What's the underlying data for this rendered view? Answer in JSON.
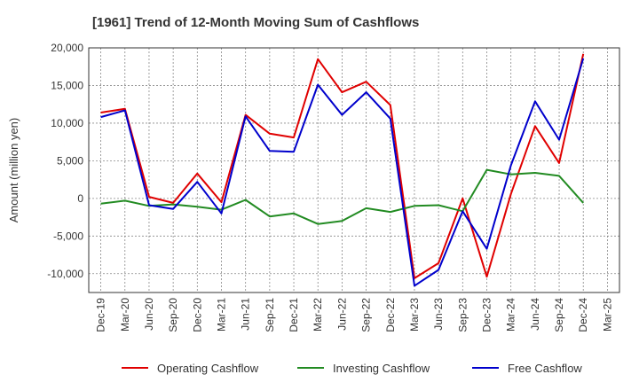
{
  "chart_data": {
    "type": "line",
    "title": "[1961]  Trend of 12-Month Moving Sum of Cashflows",
    "ylabel": "Amount (million yen)",
    "xlabel": "",
    "ylim": [
      -12500,
      20000
    ],
    "yticks": [
      20000,
      15000,
      10000,
      5000,
      0,
      -5000,
      -10000
    ],
    "ytick_labels": [
      "20,000",
      "15,000",
      "10,000",
      "5,000",
      "0",
      "-5,000",
      "-10,000"
    ],
    "x_labels": [
      "Dec-19",
      "Mar-20",
      "Jun-20",
      "Sep-20",
      "Dec-20",
      "Mar-21",
      "Jun-21",
      "Sep-21",
      "Dec-21",
      "Mar-22",
      "Jun-22",
      "Sep-22",
      "Dec-22",
      "Mar-23",
      "Jun-23",
      "Sep-23",
      "Dec-23",
      "Mar-24",
      "Jun-24",
      "Sep-24",
      "Dec-24",
      "Mar-25"
    ],
    "grid": true,
    "legend_position": "bottom",
    "series": [
      {
        "name": "Operating Cashflow",
        "color": "#e00000",
        "values": [
          11400,
          11900,
          200,
          -600,
          3300,
          -500,
          11100,
          8600,
          8100,
          18500,
          14100,
          15500,
          12400,
          -10600,
          -8600,
          0,
          -10400,
          600,
          9600,
          4700,
          19200,
          null
        ]
      },
      {
        "name": "Investing Cashflow",
        "color": "#228b22",
        "values": [
          -700,
          -300,
          -1000,
          -800,
          -1100,
          -1500,
          -200,
          -2400,
          -2000,
          -3400,
          -3000,
          -1300,
          -1800,
          -1000,
          -900,
          -1700,
          3800,
          3200,
          3400,
          3000,
          -600,
          null
        ]
      },
      {
        "name": "Free Cashflow",
        "color": "#0000cc",
        "values": [
          10800,
          11700,
          -900,
          -1400,
          2200,
          -2000,
          10900,
          6300,
          6200,
          15100,
          11100,
          14100,
          10600,
          -11600,
          -9500,
          -1700,
          -6700,
          4400,
          12900,
          7800,
          18600,
          null
        ]
      }
    ]
  }
}
